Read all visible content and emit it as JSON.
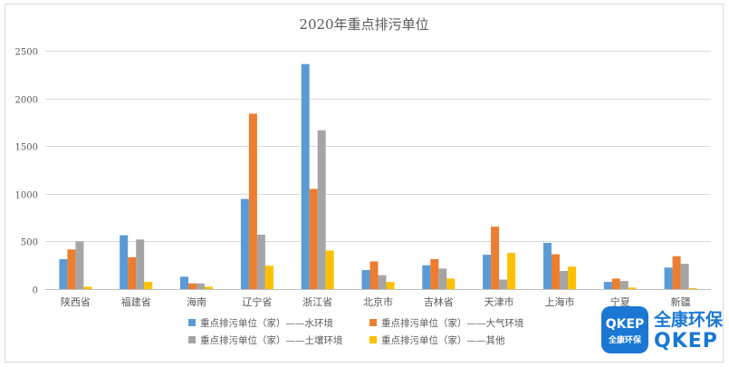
{
  "chart_data": {
    "type": "bar",
    "title": "2020年重点排污单位",
    "xlabel": "",
    "ylabel": "",
    "ylim": [
      0,
      2500
    ],
    "yticks": [
      0,
      500,
      1000,
      1500,
      2000,
      2500
    ],
    "grid": true,
    "legend_position": "bottom",
    "categories": [
      "陕西省",
      "福建省",
      "海南",
      "辽宁省",
      "浙江省",
      "北京市",
      "吉林省",
      "天津市",
      "上海市",
      "宁夏",
      "新疆"
    ],
    "series": [
      {
        "name": "重点排污单位（家）——水环境",
        "color": "#5b9bd5",
        "values": [
          315,
          565,
          130,
          945,
          2360,
          200,
          250,
          360,
          485,
          75,
          225
        ]
      },
      {
        "name": "重点排污单位（家）——大气环境",
        "color": "#ed7d31",
        "values": [
          415,
          335,
          60,
          1840,
          1050,
          290,
          315,
          655,
          365,
          110,
          345
        ]
      },
      {
        "name": "重点排污单位（家）——土壤环境",
        "color": "#a5a5a5",
        "values": [
          500,
          520,
          60,
          570,
          1665,
          145,
          215,
          100,
          190,
          85,
          265
        ]
      },
      {
        "name": "重点排污单位（家）——其他",
        "color": "#ffc000",
        "values": [
          25,
          75,
          25,
          245,
          405,
          75,
          110,
          380,
          235,
          15,
          10
        ]
      }
    ]
  },
  "logo": {
    "badge_top": "QKEP",
    "badge_bottom": "全康环保",
    "name_cn": "全康环保",
    "name_en": "QKEP",
    "registered_mark": "®"
  }
}
